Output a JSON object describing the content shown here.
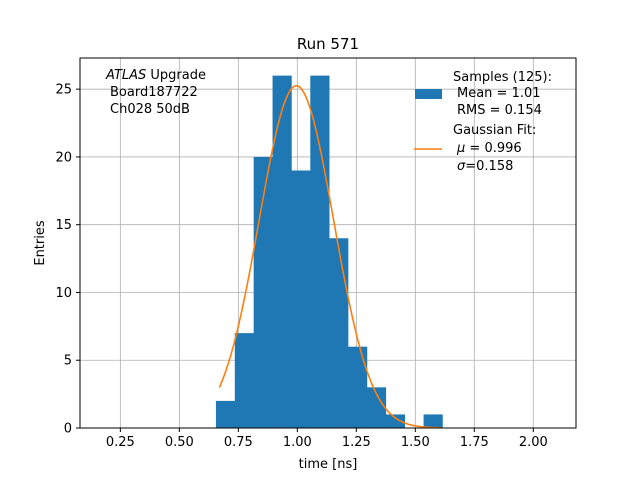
{
  "chart_data": {
    "type": "bar",
    "title": "Run 571",
    "xlabel": "time [ns]",
    "ylabel": "Entries",
    "xlim": [
      0.079,
      2.181
    ],
    "ylim": [
      0,
      27.3
    ],
    "grid": true,
    "x_ticks": [
      "0.25",
      "0.50",
      "0.75",
      "1.00",
      "1.25",
      "1.50",
      "1.75",
      "2.00"
    ],
    "x_tick_values": [
      0.25,
      0.5,
      0.75,
      1.0,
      1.25,
      1.5,
      1.75,
      2.0
    ],
    "y_ticks": [
      "0",
      "5",
      "10",
      "15",
      "20",
      "25"
    ],
    "y_tick_values": [
      0,
      5,
      10,
      15,
      20,
      25
    ],
    "colors": {
      "histogram": "#1f77b4",
      "fit": "#ff7f0e",
      "grid": "#b0b0b0"
    },
    "histogram": {
      "bin_edges": [
        0.655,
        0.735,
        0.815,
        0.895,
        0.975,
        1.055,
        1.135,
        1.215,
        1.295,
        1.375,
        1.455,
        1.535,
        1.615
      ],
      "counts": [
        2,
        7,
        20,
        26,
        19,
        26,
        14,
        6,
        3,
        1,
        0,
        1
      ]
    },
    "fit": {
      "type": "gaussian",
      "mu": 0.996,
      "sigma": 0.158,
      "x_range": [
        0.67,
        1.61
      ]
    },
    "annotation": {
      "experiment": "ATLAS",
      "line1_rest": " Upgrade",
      "line2": "Board187722",
      "line3": "Ch028 50dB"
    },
    "legend": {
      "position": "top-right",
      "samples_title": "Samples (125):",
      "samples_mean": "Mean = 1.01",
      "samples_rms": "RMS = 0.154",
      "fit_title": "Gaussian Fit:",
      "fit_mu_symbol": "μ",
      "fit_mu_value": " = 0.996",
      "fit_sigma_symbol": "σ",
      "fit_sigma_value": "=0.158"
    }
  }
}
